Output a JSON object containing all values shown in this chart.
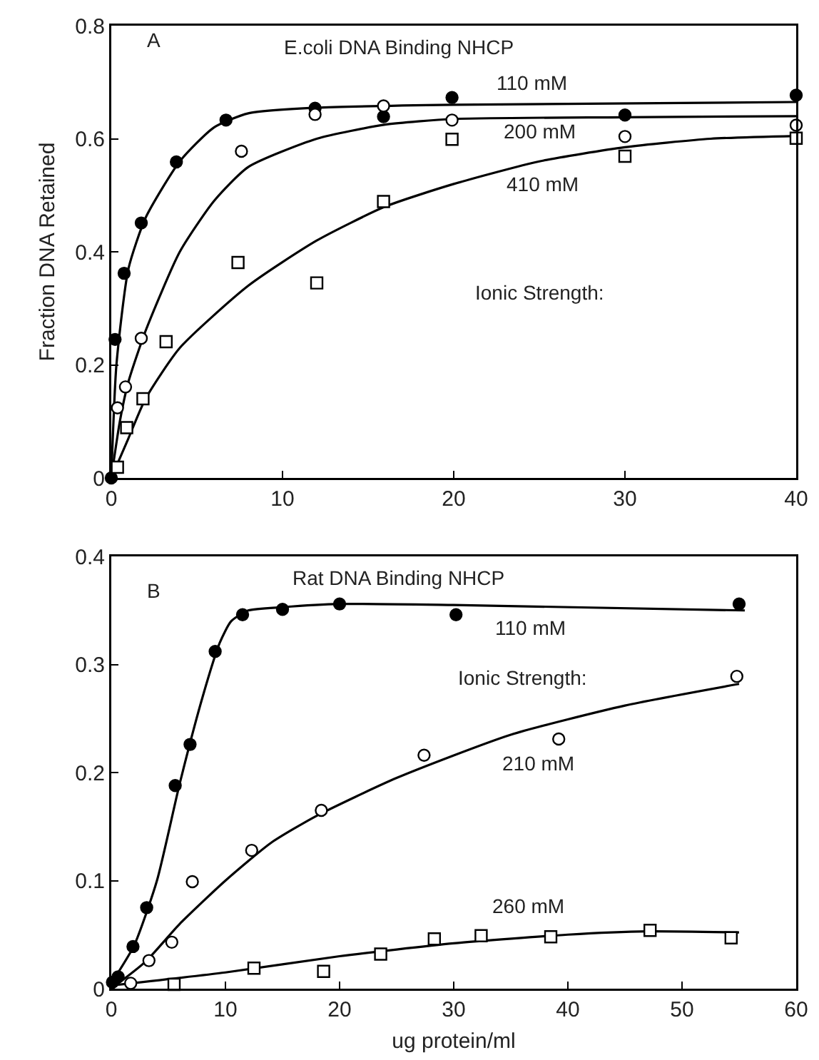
{
  "chart_data": [
    {
      "type": "scatter",
      "title": "E.coli DNA Binding NHCP",
      "ylabel": "Fraction DNA Retained",
      "xlim": [
        0,
        40
      ],
      "ylim": [
        0,
        0.8
      ],
      "xticks": [
        0,
        10,
        20,
        30,
        40
      ],
      "yticks": [
        0,
        0.2,
        0.4,
        0.6,
        0.8
      ],
      "annotations": [
        "A",
        "110 mM",
        "200 mM",
        "410 mM",
        "Ionic Strength:"
      ],
      "series": [
        {
          "type": "line",
          "color": "#000000",
          "marker": "none",
          "line_style": "solid",
          "x": [
            0,
            0.3,
            1,
            2,
            4,
            6,
            8,
            12,
            20,
            40
          ],
          "values": [
            0,
            0.2,
            0.37,
            0.46,
            0.56,
            0.62,
            0.645,
            0.655,
            0.66,
            0.665
          ]
        },
        {
          "type": "line",
          "color": "#000000",
          "marker": "none",
          "line_style": "solid",
          "x": [
            0,
            0.5,
            1,
            2,
            4,
            6,
            8,
            12,
            16,
            20,
            30,
            40
          ],
          "values": [
            0,
            0.1,
            0.17,
            0.26,
            0.4,
            0.49,
            0.55,
            0.6,
            0.625,
            0.635,
            0.638,
            0.64
          ]
        },
        {
          "type": "line",
          "color": "#000000",
          "marker": "none",
          "line_style": "solid",
          "x": [
            0,
            1,
            2,
            4,
            8,
            12,
            16,
            20,
            25,
            30,
            35,
            40
          ],
          "values": [
            0,
            0.07,
            0.14,
            0.23,
            0.34,
            0.42,
            0.48,
            0.52,
            0.56,
            0.585,
            0.6,
            0.605
          ]
        },
        {
          "color": "#000000",
          "marker": "circle",
          "x": [
            0,
            0.22,
            0.75,
            1.75,
            3.8,
            6.7,
            11.9,
            15.9,
            19.9,
            30,
            40
          ],
          "values": [
            0,
            0.245,
            0.362,
            0.451,
            0.559,
            0.633,
            0.654,
            0.639,
            0.673,
            0.642,
            0.677
          ]
        },
        {
          "color": "#ffffff",
          "marker": "circle",
          "x": [
            0.36,
            0.83,
            1.75,
            7.6,
            11.9,
            15.9,
            19.9,
            30,
            40
          ],
          "values": [
            0.124,
            0.161,
            0.247,
            0.578,
            0.643,
            0.658,
            0.633,
            0.604,
            0.624
          ]
        },
        {
          "color": "#ffffff",
          "marker": "square",
          "x": [
            0.36,
            0.9,
            1.85,
            3.2,
            7.4,
            12,
            15.9,
            19.9,
            30,
            40
          ],
          "values": [
            0.019,
            0.089,
            0.14,
            0.241,
            0.381,
            0.345,
            0.489,
            0.599,
            0.569,
            0.601
          ]
        }
      ]
    },
    {
      "type": "scatter",
      "title": "Rat DNA Binding NHCP",
      "xlabel": "ug protein/ml",
      "xlim": [
        0,
        60
      ],
      "ylim": [
        0,
        0.4
      ],
      "xticks": [
        0,
        10,
        20,
        30,
        40,
        50,
        60
      ],
      "yticks": [
        0,
        0.1,
        0.2,
        0.3,
        0.4
      ],
      "annotations": [
        "B",
        "110 mM",
        "Ionic Strength:",
        "210 mM",
        "260 mM"
      ],
      "series": [
        {
          "type": "line",
          "color": "#000000",
          "marker": "none",
          "line_style": "solid",
          "x": [
            0,
            2,
            4,
            6,
            8,
            9.5,
            10.5,
            12,
            15,
            20,
            30,
            55.5
          ],
          "values": [
            0.005,
            0.04,
            0.1,
            0.19,
            0.27,
            0.32,
            0.34,
            0.35,
            0.353,
            0.356,
            0.355,
            0.35
          ]
        },
        {
          "type": "line",
          "color": "#000000",
          "marker": "none",
          "line_style": "solid",
          "x": [
            0,
            3,
            6,
            10,
            14,
            18,
            25,
            35,
            45,
            55
          ],
          "values": [
            0,
            0.025,
            0.06,
            0.1,
            0.135,
            0.16,
            0.195,
            0.235,
            0.262,
            0.282
          ]
        },
        {
          "type": "line",
          "color": "#000000",
          "marker": "none",
          "line_style": "solid",
          "x": [
            0,
            10,
            20,
            30,
            40,
            47,
            55
          ],
          "values": [
            0.003,
            0.015,
            0.03,
            0.042,
            0.05,
            0.053,
            0.052
          ]
        },
        {
          "color": "#000000",
          "marker": "circle",
          "x": [
            0.1,
            0.6,
            1.9,
            3.1,
            5.6,
            6.9,
            9.1,
            11.5,
            15,
            20,
            30.2,
            55
          ],
          "values": [
            0.006,
            0.011,
            0.039,
            0.075,
            0.188,
            0.226,
            0.312,
            0.346,
            0.351,
            0.356,
            0.346,
            0.356
          ]
        },
        {
          "color": "#ffffff",
          "marker": "circle",
          "x": [
            1.7,
            3.3,
            5.3,
            7.1,
            12.3,
            18.4,
            27.4,
            39.2,
            54.8
          ],
          "values": [
            0.005,
            0.026,
            0.043,
            0.099,
            0.128,
            0.165,
            0.216,
            0.231,
            0.289
          ]
        },
        {
          "color": "#ffffff",
          "marker": "square",
          "x": [
            5.5,
            12.5,
            18.6,
            23.6,
            28.3,
            32.4,
            38.5,
            47.2,
            54.3
          ],
          "values": [
            0.004,
            0.019,
            0.016,
            0.032,
            0.046,
            0.049,
            0.048,
            0.054,
            0.047
          ]
        }
      ]
    }
  ]
}
